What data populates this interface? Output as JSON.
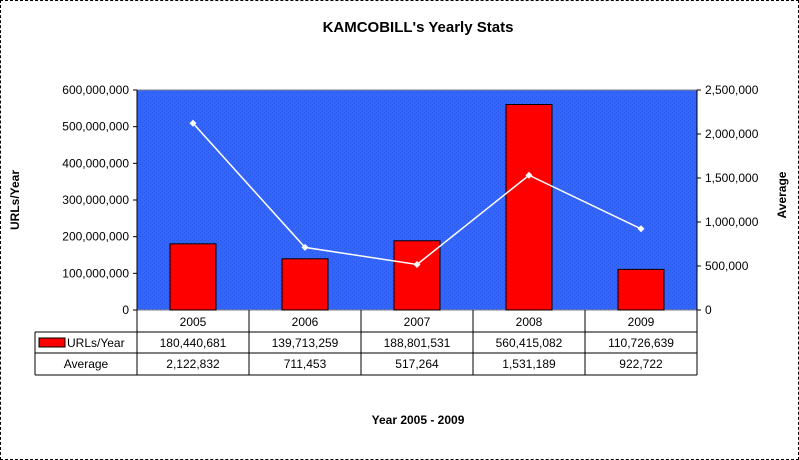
{
  "chart_data": {
    "type": "bar",
    "title": "KAMCOBILL's Yearly Stats",
    "xlabel": "Year 2005 - 2009",
    "ylabel": "URLs/Year",
    "y2label": "Average",
    "categories": [
      "2005",
      "2006",
      "2007",
      "2008",
      "2009"
    ],
    "ylim": [
      0,
      600000000
    ],
    "y2lim": [
      0,
      2500000
    ],
    "yticks": [
      "0",
      "100,000,000",
      "200,000,000",
      "300,000,000",
      "400,000,000",
      "500,000,000",
      "600,000,000"
    ],
    "y2ticks": [
      "0",
      "500,000",
      "1,000,000",
      "1,500,000",
      "2,000,000",
      "2,500,000"
    ],
    "series": [
      {
        "name": "URLs/Year",
        "type": "bar",
        "axis": "left",
        "color": "#ff0000",
        "values": [
          180440681,
          139713259,
          188801531,
          560415082,
          110726639
        ],
        "labels": [
          "180,440,681",
          "139,713,259",
          "188,801,531",
          "560,415,082",
          "110,726,639"
        ]
      },
      {
        "name": "Average",
        "type": "line",
        "axis": "right",
        "color": "#ffffff",
        "values": [
          2122832,
          711453,
          517264,
          1531189,
          922722
        ],
        "labels": [
          "2,122,832",
          "711,453",
          "517,264",
          "1,531,189",
          "922,722"
        ]
      }
    ],
    "plot_background": "#3366ff",
    "grid": false,
    "legend": "data-table"
  }
}
